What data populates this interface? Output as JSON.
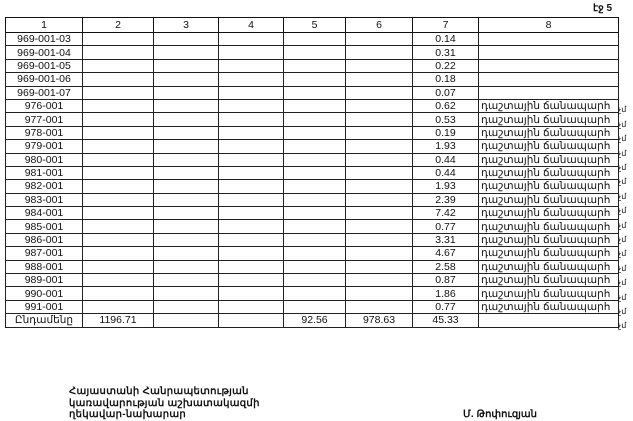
{
  "page_label": "էջ 5",
  "table": {
    "headers": [
      "1",
      "2",
      "3",
      "4",
      "5",
      "6",
      "7",
      "8"
    ],
    "rows": [
      {
        "code": "969-001-03",
        "c7": "0.14",
        "c8": "",
        "note": ""
      },
      {
        "code": "969-001-04",
        "c7": "0.31",
        "c8": "",
        "note": ""
      },
      {
        "code": "969-001-05",
        "c7": "0.22",
        "c8": "",
        "note": ""
      },
      {
        "code": "969-001-06",
        "c7": "0.18",
        "c8": "",
        "note": ""
      },
      {
        "code": "969-001-07",
        "c7": "0.07",
        "c8": "",
        "note": ""
      },
      {
        "code": "976-001",
        "c7": "0.62",
        "c8": "դաշտային ճանապարհ",
        "note": "չմ"
      },
      {
        "code": "977-001",
        "c7": "0.53",
        "c8": "դաշտային ճանապարհ",
        "note": "չմ"
      },
      {
        "code": "978-001",
        "c7": "0.19",
        "c8": "դաշտային ճանապարհ",
        "note": "չմ"
      },
      {
        "code": "979-001",
        "c7": "1.93",
        "c8": "դաշտային ճանապարհ",
        "note": "չմ"
      },
      {
        "code": "980-001",
        "c7": "0.44",
        "c8": "դաշտային ճանապարհ",
        "note": "չմ"
      },
      {
        "code": "981-001",
        "c7": "0.44",
        "c8": "դաշտային ճանապարհ",
        "note": "չմ"
      },
      {
        "code": "982-001",
        "c7": "1.93",
        "c8": "դաշտային ճանապարհ",
        "note": "չմ"
      },
      {
        "code": "983-001",
        "c7": "2.39",
        "c8": "դաշտային ճանապարհ",
        "note": "չմ"
      },
      {
        "code": "984-001",
        "c7": "7.42",
        "c8": "դաշտային ճանապարհ",
        "note": "չմ"
      },
      {
        "code": "985-001",
        "c7": "0.77",
        "c8": "դաշտային ճանապարհ",
        "note": "չմ"
      },
      {
        "code": "986-001",
        "c7": "3.31",
        "c8": "դաշտային ճանապարհ",
        "note": "չմ"
      },
      {
        "code": "987-001",
        "c7": "4.67",
        "c8": "դաշտային ճանապարհ",
        "note": "չմ"
      },
      {
        "code": "988-001",
        "c7": "2.58",
        "c8": "դաշտային ճանապարհ",
        "note": "չմ"
      },
      {
        "code": "989-001",
        "c7": "0.87",
        "c8": "դաշտային ճանապարհ",
        "note": "չմ"
      },
      {
        "code": "990-001",
        "c7": "1.86",
        "c8": "դաշտային ճանապարհ",
        "note": "չմ"
      },
      {
        "code": "991-001",
        "c7": "0.77",
        "c8": "դաշտային ճանապարհ",
        "note": "չմ"
      }
    ],
    "total": {
      "label": "Ընդամենը",
      "c2": "1196.71",
      "c3": "",
      "c4": "",
      "c5": "92.56",
      "c6": "978.63",
      "c7": "45.33",
      "c8": ""
    }
  },
  "footer": {
    "lines": [
      "Հայաստանի Հանրապետության",
      "կառավարության աշխատակազմի",
      "ղեկավար-նախարար"
    ],
    "signer": "Մ. Թոփուզյան"
  }
}
